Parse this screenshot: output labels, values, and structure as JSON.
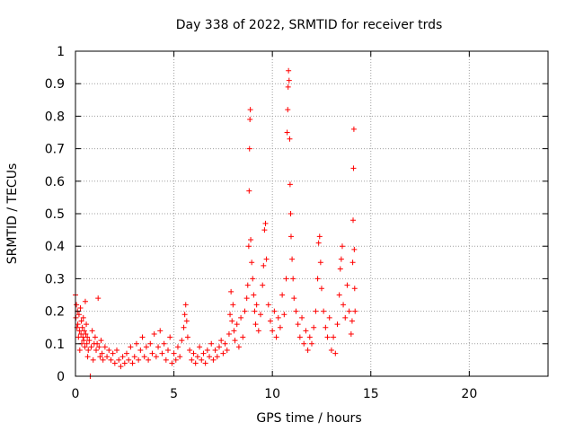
{
  "chart_data": {
    "type": "scatter",
    "title": "Day 338 of 2022, SRMTID for receiver trds",
    "xlabel": "GPS time / hours",
    "ylabel": "SRMTID / TECUs",
    "xlim": [
      0,
      24
    ],
    "ylim": [
      0,
      1
    ],
    "xticks": [
      0,
      5,
      10,
      15,
      20
    ],
    "xtick_labels": [
      "0",
      "5",
      "10",
      "15",
      "20"
    ],
    "yticks": [
      0,
      0.1,
      0.2,
      0.3,
      0.4,
      0.5,
      0.6,
      0.7,
      0.8,
      0.9,
      1
    ],
    "ytick_labels": [
      "0",
      "0.1",
      "0.2",
      "0.3",
      "0.4",
      "0.5",
      "0.6",
      "0.7",
      "0.8",
      "0.9",
      "1"
    ],
    "grid": true,
    "marker": "+",
    "color": "#ff0000",
    "series": [
      {
        "name": "SRMTID",
        "points": [
          [
            0.0,
            0.25
          ],
          [
            0.02,
            0.18
          ],
          [
            0.05,
            0.22
          ],
          [
            0.08,
            0.15
          ],
          [
            0.1,
            0.2
          ],
          [
            0.12,
            0.16
          ],
          [
            0.15,
            0.12
          ],
          [
            0.18,
            0.19
          ],
          [
            0.2,
            0.14
          ],
          [
            0.22,
            0.08
          ],
          [
            0.25,
            0.21
          ],
          [
            0.28,
            0.13
          ],
          [
            0.3,
            0.17
          ],
          [
            0.32,
            0.1
          ],
          [
            0.35,
            0.15
          ],
          [
            0.38,
            0.12
          ],
          [
            0.4,
            0.18
          ],
          [
            0.42,
            0.11
          ],
          [
            0.45,
            0.14
          ],
          [
            0.48,
            0.09
          ],
          [
            0.5,
            0.23
          ],
          [
            0.52,
            0.13
          ],
          [
            0.55,
            0.16
          ],
          [
            0.58,
            0.1
          ],
          [
            0.6,
            0.12
          ],
          [
            0.62,
            0.06
          ],
          [
            0.65,
            0.08
          ],
          [
            0.7,
            0.11
          ],
          [
            0.75,
            0.0
          ],
          [
            0.8,
            0.09
          ],
          [
            0.85,
            0.14
          ],
          [
            0.9,
            0.05
          ],
          [
            0.95,
            0.1
          ],
          [
            1.0,
            0.12
          ],
          [
            1.05,
            0.08
          ],
          [
            1.1,
            0.1
          ],
          [
            1.15,
            0.24
          ],
          [
            1.2,
            0.09
          ],
          [
            1.25,
            0.06
          ],
          [
            1.3,
            0.11
          ],
          [
            1.35,
            0.07
          ],
          [
            1.4,
            0.05
          ],
          [
            1.5,
            0.09
          ],
          [
            1.6,
            0.06
          ],
          [
            1.7,
            0.08
          ],
          [
            1.8,
            0.05
          ],
          [
            1.9,
            0.07
          ],
          [
            2.0,
            0.04
          ],
          [
            2.1,
            0.08
          ],
          [
            2.2,
            0.05
          ],
          [
            2.3,
            0.03
          ],
          [
            2.4,
            0.06
          ],
          [
            2.5,
            0.04
          ],
          [
            2.6,
            0.07
          ],
          [
            2.7,
            0.05
          ],
          [
            2.8,
            0.09
          ],
          [
            2.9,
            0.04
          ],
          [
            3.0,
            0.06
          ],
          [
            3.1,
            0.1
          ],
          [
            3.2,
            0.05
          ],
          [
            3.3,
            0.08
          ],
          [
            3.4,
            0.12
          ],
          [
            3.5,
            0.06
          ],
          [
            3.6,
            0.09
          ],
          [
            3.7,
            0.05
          ],
          [
            3.8,
            0.1
          ],
          [
            3.9,
            0.07
          ],
          [
            4.0,
            0.13
          ],
          [
            4.1,
            0.06
          ],
          [
            4.2,
            0.09
          ],
          [
            4.3,
            0.14
          ],
          [
            4.4,
            0.07
          ],
          [
            4.5,
            0.1
          ],
          [
            4.6,
            0.05
          ],
          [
            4.7,
            0.08
          ],
          [
            4.8,
            0.12
          ],
          [
            4.9,
            0.04
          ],
          [
            5.0,
            0.07
          ],
          [
            5.1,
            0.05
          ],
          [
            5.2,
            0.09
          ],
          [
            5.3,
            0.06
          ],
          [
            5.4,
            0.11
          ],
          [
            5.5,
            0.15
          ],
          [
            5.55,
            0.19
          ],
          [
            5.6,
            0.22
          ],
          [
            5.65,
            0.17
          ],
          [
            5.7,
            0.12
          ],
          [
            5.8,
            0.08
          ],
          [
            5.9,
            0.05
          ],
          [
            6.0,
            0.07
          ],
          [
            6.1,
            0.04
          ],
          [
            6.2,
            0.06
          ],
          [
            6.3,
            0.09
          ],
          [
            6.4,
            0.05
          ],
          [
            6.5,
            0.07
          ],
          [
            6.6,
            0.04
          ],
          [
            6.7,
            0.08
          ],
          [
            6.8,
            0.06
          ],
          [
            6.9,
            0.1
          ],
          [
            7.0,
            0.05
          ],
          [
            7.1,
            0.08
          ],
          [
            7.2,
            0.06
          ],
          [
            7.3,
            0.09
          ],
          [
            7.4,
            0.11
          ],
          [
            7.5,
            0.07
          ],
          [
            7.6,
            0.1
          ],
          [
            7.7,
            0.08
          ],
          [
            7.8,
            0.13
          ],
          [
            7.85,
            0.19
          ],
          [
            7.9,
            0.26
          ],
          [
            7.95,
            0.17
          ],
          [
            8.0,
            0.22
          ],
          [
            8.05,
            0.14
          ],
          [
            8.1,
            0.11
          ],
          [
            8.2,
            0.16
          ],
          [
            8.3,
            0.09
          ],
          [
            8.4,
            0.18
          ],
          [
            8.5,
            0.12
          ],
          [
            8.6,
            0.2
          ],
          [
            8.7,
            0.24
          ],
          [
            8.75,
            0.28
          ],
          [
            8.8,
            0.4
          ],
          [
            8.82,
            0.57
          ],
          [
            8.84,
            0.7
          ],
          [
            8.86,
            0.79
          ],
          [
            8.88,
            0.82
          ],
          [
            8.9,
            0.42
          ],
          [
            8.95,
            0.35
          ],
          [
            9.0,
            0.3
          ],
          [
            9.05,
            0.25
          ],
          [
            9.1,
            0.2
          ],
          [
            9.15,
            0.16
          ],
          [
            9.2,
            0.22
          ],
          [
            9.3,
            0.14
          ],
          [
            9.4,
            0.19
          ],
          [
            9.5,
            0.28
          ],
          [
            9.55,
            0.34
          ],
          [
            9.6,
            0.45
          ],
          [
            9.65,
            0.47
          ],
          [
            9.7,
            0.36
          ],
          [
            9.8,
            0.22
          ],
          [
            9.9,
            0.17
          ],
          [
            10.0,
            0.14
          ],
          [
            10.1,
            0.2
          ],
          [
            10.2,
            0.12
          ],
          [
            10.3,
            0.18
          ],
          [
            10.4,
            0.15
          ],
          [
            10.5,
            0.25
          ],
          [
            10.6,
            0.19
          ],
          [
            10.7,
            0.3
          ],
          [
            10.75,
            0.75
          ],
          [
            10.78,
            0.82
          ],
          [
            10.8,
            0.89
          ],
          [
            10.82,
            0.94
          ],
          [
            10.85,
            0.91
          ],
          [
            10.88,
            0.73
          ],
          [
            10.9,
            0.59
          ],
          [
            10.93,
            0.5
          ],
          [
            10.95,
            0.43
          ],
          [
            11.0,
            0.36
          ],
          [
            11.05,
            0.3
          ],
          [
            11.1,
            0.24
          ],
          [
            11.2,
            0.2
          ],
          [
            11.3,
            0.16
          ],
          [
            11.4,
            0.12
          ],
          [
            11.5,
            0.18
          ],
          [
            11.6,
            0.1
          ],
          [
            11.7,
            0.14
          ],
          [
            11.8,
            0.08
          ],
          [
            11.9,
            0.12
          ],
          [
            12.0,
            0.1
          ],
          [
            12.1,
            0.15
          ],
          [
            12.2,
            0.2
          ],
          [
            12.3,
            0.3
          ],
          [
            12.35,
            0.41
          ],
          [
            12.4,
            0.43
          ],
          [
            12.45,
            0.35
          ],
          [
            12.5,
            0.27
          ],
          [
            12.6,
            0.2
          ],
          [
            12.7,
            0.15
          ],
          [
            12.8,
            0.12
          ],
          [
            12.9,
            0.18
          ],
          [
            13.0,
            0.08
          ],
          [
            13.1,
            0.12
          ],
          [
            13.2,
            0.07
          ],
          [
            13.3,
            0.16
          ],
          [
            13.4,
            0.25
          ],
          [
            13.45,
            0.33
          ],
          [
            13.5,
            0.36
          ],
          [
            13.55,
            0.4
          ],
          [
            13.6,
            0.22
          ],
          [
            13.7,
            0.18
          ],
          [
            13.8,
            0.28
          ],
          [
            13.9,
            0.2
          ],
          [
            14.0,
            0.13
          ],
          [
            14.05,
            0.17
          ],
          [
            14.08,
            0.35
          ],
          [
            14.1,
            0.48
          ],
          [
            14.12,
            0.64
          ],
          [
            14.14,
            0.76
          ],
          [
            14.16,
            0.39
          ],
          [
            14.18,
            0.27
          ],
          [
            14.2,
            0.2
          ]
        ]
      }
    ]
  }
}
